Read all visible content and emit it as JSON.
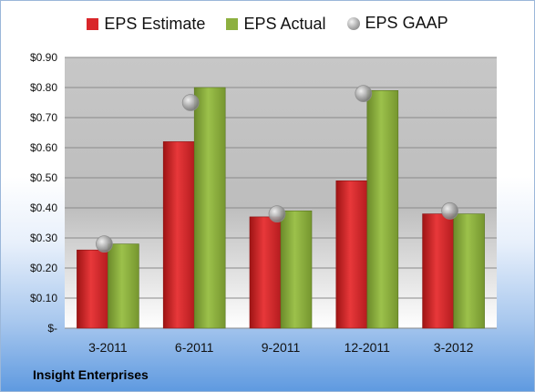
{
  "brand": "Insight Enterprises",
  "chart_data": {
    "type": "bar",
    "categories": [
      "3-2011",
      "6-2011",
      "9-2011",
      "12-2011",
      "3-2012"
    ],
    "series": [
      {
        "name": "EPS Estimate",
        "values": [
          0.26,
          0.62,
          0.37,
          0.49,
          0.38
        ],
        "color": "#d9262a"
      },
      {
        "name": "EPS Actual",
        "values": [
          0.28,
          0.8,
          0.39,
          0.79,
          0.38
        ],
        "color": "#8db040"
      },
      {
        "name": "EPS GAAP",
        "values": [
          0.28,
          0.75,
          0.38,
          0.78,
          0.39
        ],
        "marker": "circle",
        "color": "#a8a8a8"
      }
    ],
    "y_ticks": [
      "$-",
      "$0.10",
      "$0.20",
      "$0.30",
      "$0.40",
      "$0.50",
      "$0.60",
      "$0.70",
      "$0.80",
      "$0.90"
    ],
    "ylim": [
      0,
      0.9
    ],
    "grid": true,
    "legend": "top"
  }
}
